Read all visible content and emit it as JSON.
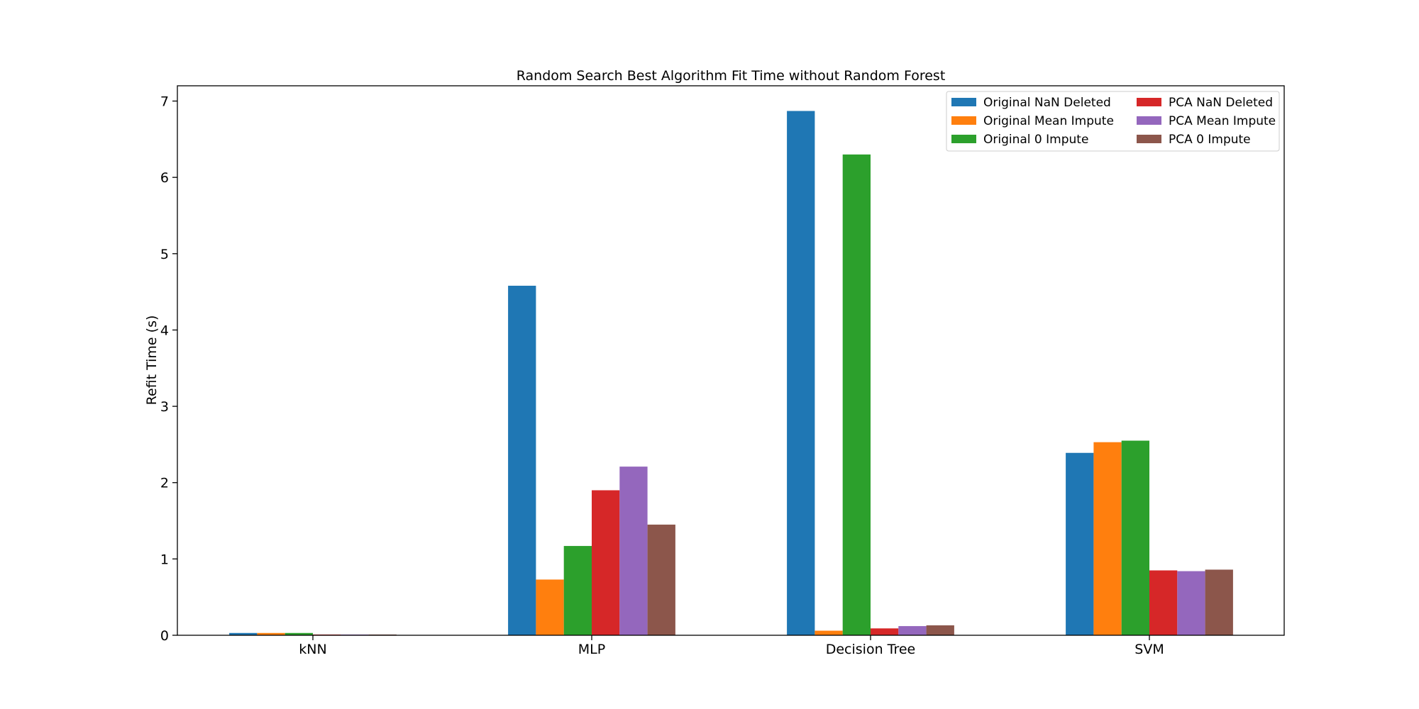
{
  "chart_data": {
    "type": "bar",
    "title": "Random Search Best Algorithm Fit Time without Random Forest",
    "xlabel": "",
    "ylabel": "Refit Time (s)",
    "ylim": [
      0,
      7.2
    ],
    "yticks": [
      0,
      1,
      2,
      3,
      4,
      5,
      6,
      7
    ],
    "categories": [
      "kNN",
      "MLP",
      "Decision Tree",
      "SVM"
    ],
    "legend_position": "top-right",
    "legend_columns": 2,
    "grid": false,
    "series": [
      {
        "name": "Original NaN Deleted",
        "color": "#1f77b4",
        "values": [
          0.03,
          4.58,
          6.87,
          2.39
        ]
      },
      {
        "name": "Original Mean Impute",
        "color": "#ff7f0e",
        "values": [
          0.03,
          0.73,
          0.06,
          2.53
        ]
      },
      {
        "name": "Original 0 Impute",
        "color": "#2ca02c",
        "values": [
          0.03,
          1.17,
          6.3,
          2.55
        ]
      },
      {
        "name": "PCA NaN Deleted",
        "color": "#d62728",
        "values": [
          0.01,
          1.9,
          0.09,
          0.85
        ]
      },
      {
        "name": "PCA Mean Impute",
        "color": "#9467bd",
        "values": [
          0.01,
          2.21,
          0.12,
          0.84
        ]
      },
      {
        "name": "PCA 0 Impute",
        "color": "#8c564b",
        "values": [
          0.01,
          1.45,
          0.13,
          0.86
        ]
      }
    ]
  }
}
